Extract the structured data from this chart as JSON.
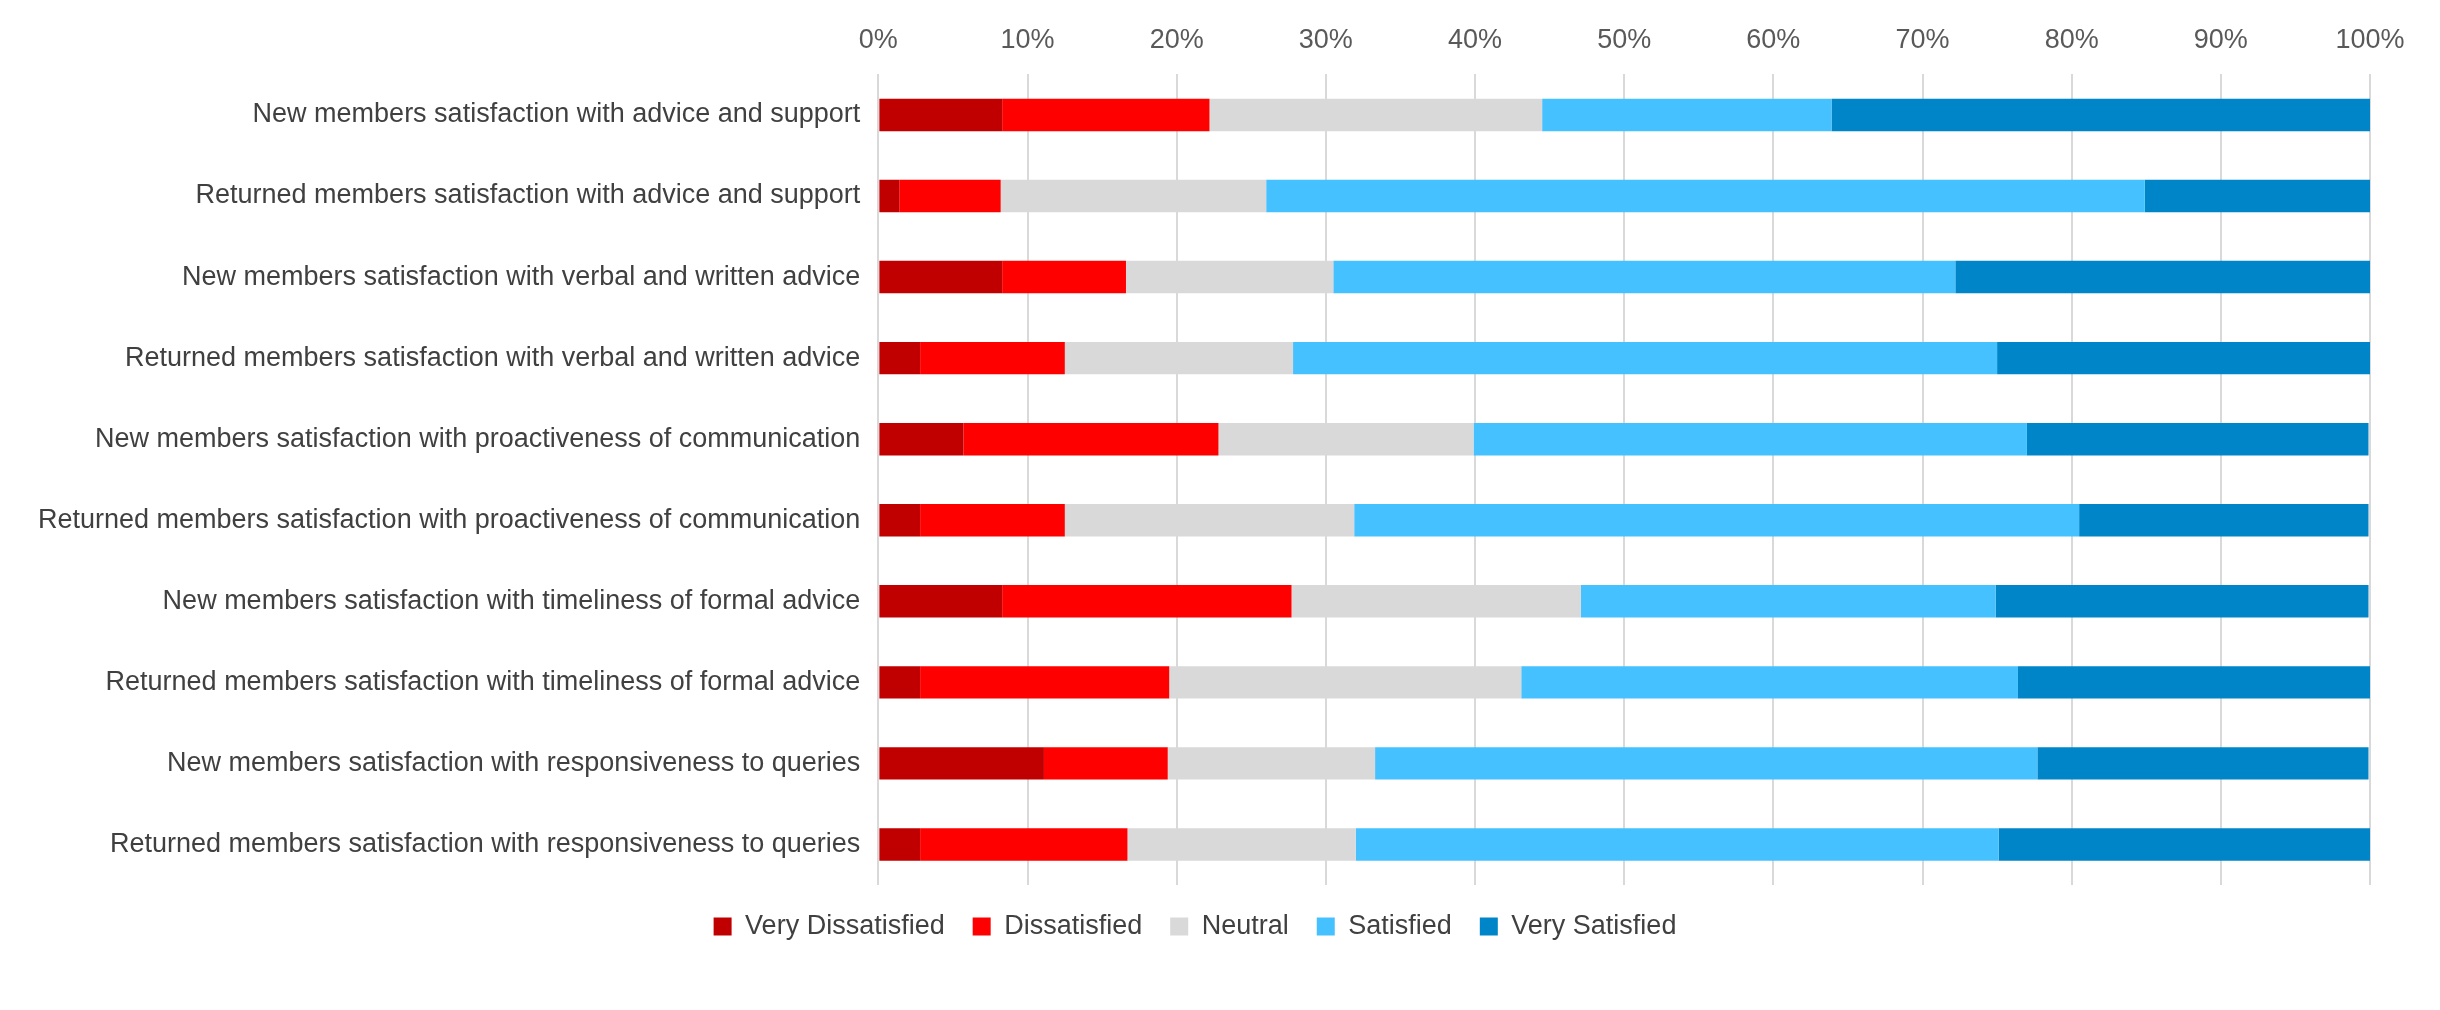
{
  "chart_data": {
    "type": "bar",
    "orientation": "horizontal",
    "stacked": true,
    "categories": [
      "New members satisfaction with advice and support",
      "Returned members satisfaction with advice and support",
      "New members satisfaction with verbal and written advice",
      "Returned members satisfaction with verbal and written advice",
      "New members satisfaction with proactiveness of communication",
      "Returned members satisfaction with proactiveness of communication",
      "New members satisfaction with timeliness of formal advice",
      "Returned members satisfaction with timeliness of formal advice",
      "New members satisfaction with responsiveness to queries",
      "Returned members satisfaction with responsiveness to queries"
    ],
    "series": [
      {
        "name": "Very Dissatisfied",
        "color": "#c00000",
        "values": [
          8.3,
          1.4,
          8.3,
          2.8,
          5.7,
          2.8,
          8.3,
          2.8,
          11.1,
          2.8
        ]
      },
      {
        "name": "Dissatisfied",
        "color": "#ff0000",
        "values": [
          13.9,
          6.8,
          8.3,
          9.7,
          17.1,
          9.7,
          19.4,
          16.7,
          8.3,
          13.9
        ]
      },
      {
        "name": "Neutral",
        "color": "#d9d9d9",
        "values": [
          22.3,
          17.8,
          13.9,
          15.3,
          17.1,
          19.4,
          19.4,
          23.6,
          13.9,
          15.3
        ]
      },
      {
        "name": "Satisfied",
        "color": "#45c1ff",
        "values": [
          19.4,
          58.9,
          41.7,
          47.2,
          37.1,
          48.6,
          27.8,
          33.3,
          44.4,
          43.1
        ]
      },
      {
        "name": "Very Satisfied",
        "color": "#0085c8",
        "values": [
          36.1,
          15.1,
          27.8,
          25.0,
          22.9,
          19.4,
          25.0,
          23.6,
          22.2,
          24.9
        ]
      }
    ],
    "xlim": [
      0,
      100
    ],
    "xticks": [
      {
        "value": 0,
        "label": "0%"
      },
      {
        "value": 10,
        "label": "10%"
      },
      {
        "value": 20,
        "label": "20%"
      },
      {
        "value": 30,
        "label": "30%"
      },
      {
        "value": 40,
        "label": "40%"
      },
      {
        "value": 50,
        "label": "50%"
      },
      {
        "value": 60,
        "label": "60%"
      },
      {
        "value": 70,
        "label": "70%"
      },
      {
        "value": 80,
        "label": "80%"
      },
      {
        "value": 90,
        "label": "90%"
      },
      {
        "value": 100,
        "label": "100%"
      }
    ],
    "grid": "x",
    "legend": "bottom"
  }
}
